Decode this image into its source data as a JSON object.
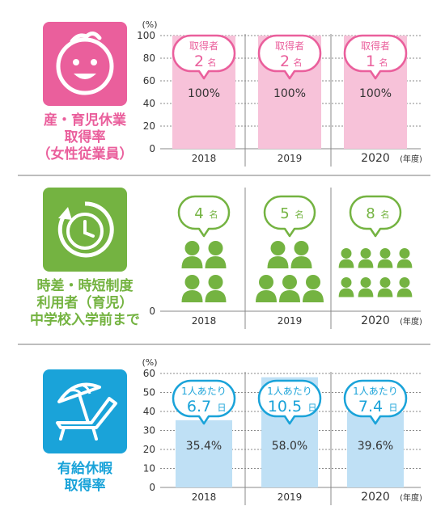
{
  "colors": {
    "pink": "#ea5f9c",
    "pink_light": "#f7c2d9",
    "green": "#74b341",
    "blue": "#1aa3d9",
    "blue_light": "#bfe0f5",
    "grid": "#8a8a8a"
  },
  "sections": [
    {
      "label_lines": [
        "産・育児休業",
        "取得率",
        "（女性従業員）"
      ],
      "icon": "baby-face-icon",
      "y_unit": "(%)",
      "year_unit": "(年度)",
      "chart_data": {
        "type": "bar",
        "categories": [
          "2018",
          "2019",
          "2020"
        ],
        "values": [
          100,
          100,
          100
        ],
        "value_labels": [
          "100%",
          "100%",
          "100%"
        ],
        "ylim": [
          0,
          100
        ],
        "yticks": [
          0,
          20,
          40,
          60,
          80,
          100
        ],
        "callouts": [
          {
            "title": "取得者",
            "value": "2",
            "unit": "名"
          },
          {
            "title": "取得者",
            "value": "2",
            "unit": "名"
          },
          {
            "title": "取得者",
            "value": "1",
            "unit": "名"
          }
        ]
      }
    },
    {
      "label_lines": [
        "時差・時短制度",
        "利用者（育児）",
        "中学校入学前まで"
      ],
      "icon": "clock-icon",
      "year_unit": "(年度)",
      "chart_data": {
        "type": "pictogram",
        "categories": [
          "2018",
          "2019",
          "2020"
        ],
        "values": [
          4,
          5,
          8
        ],
        "yticks": [
          0
        ],
        "callouts": [
          {
            "value": "4",
            "unit": "名"
          },
          {
            "value": "5",
            "unit": "名"
          },
          {
            "value": "8",
            "unit": "名"
          }
        ]
      }
    },
    {
      "label_lines": [
        "有給休暇",
        "取得率"
      ],
      "icon": "beach-chair-umbrella-icon",
      "y_unit": "(%)",
      "year_unit": "(年度)",
      "chart_data": {
        "type": "bar",
        "categories": [
          "2018",
          "2019",
          "2020"
        ],
        "values": [
          35.4,
          58.0,
          39.6
        ],
        "value_labels": [
          "35.4%",
          "58.0%",
          "39.6%"
        ],
        "ylim": [
          0,
          60
        ],
        "yticks": [
          0,
          10,
          20,
          30,
          40,
          50,
          60
        ],
        "callouts": [
          {
            "title": "1人あたり",
            "value": "6.7",
            "unit": "日"
          },
          {
            "title": "1人あたり",
            "value": "10.5",
            "unit": "日"
          },
          {
            "title": "1人あたり",
            "value": "7.4",
            "unit": "日"
          }
        ]
      }
    }
  ]
}
